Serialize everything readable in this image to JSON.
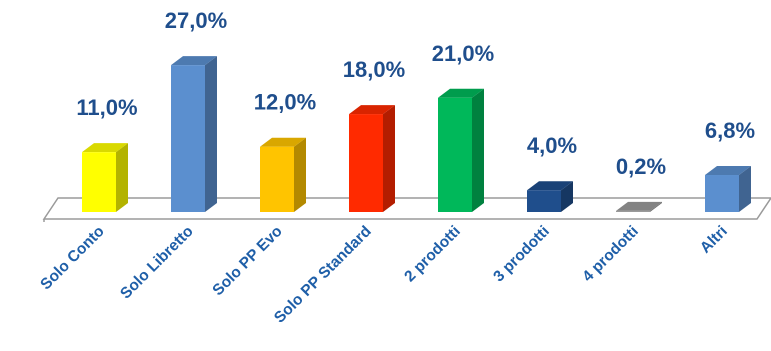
{
  "chart_data": {
    "type": "bar",
    "categories": [
      "Solo Conto",
      "Solo Libretto",
      "Solo PP Evo",
      "Solo PP Standard",
      "2 prodotti",
      "3 prodotti",
      "4 prodotti",
      "Altri"
    ],
    "values": [
      11.0,
      27.0,
      12.0,
      18.0,
      21.0,
      4.0,
      0.2,
      6.8
    ],
    "data_labels": [
      "11,0%",
      "27,0%",
      "12,0%",
      "18,0%",
      "21,0%",
      "4,0%",
      "0,2%",
      "6,8%"
    ],
    "colors": [
      "#ffff00",
      "#5b8fcf",
      "#ffc400",
      "#ff2a00",
      "#00b85a",
      "#1f4e8c",
      "#9a9a9a",
      "#5b8fcf"
    ],
    "ylim": [
      0,
      27
    ],
    "grid": false,
    "legend": "none",
    "style": "3d-bar"
  }
}
